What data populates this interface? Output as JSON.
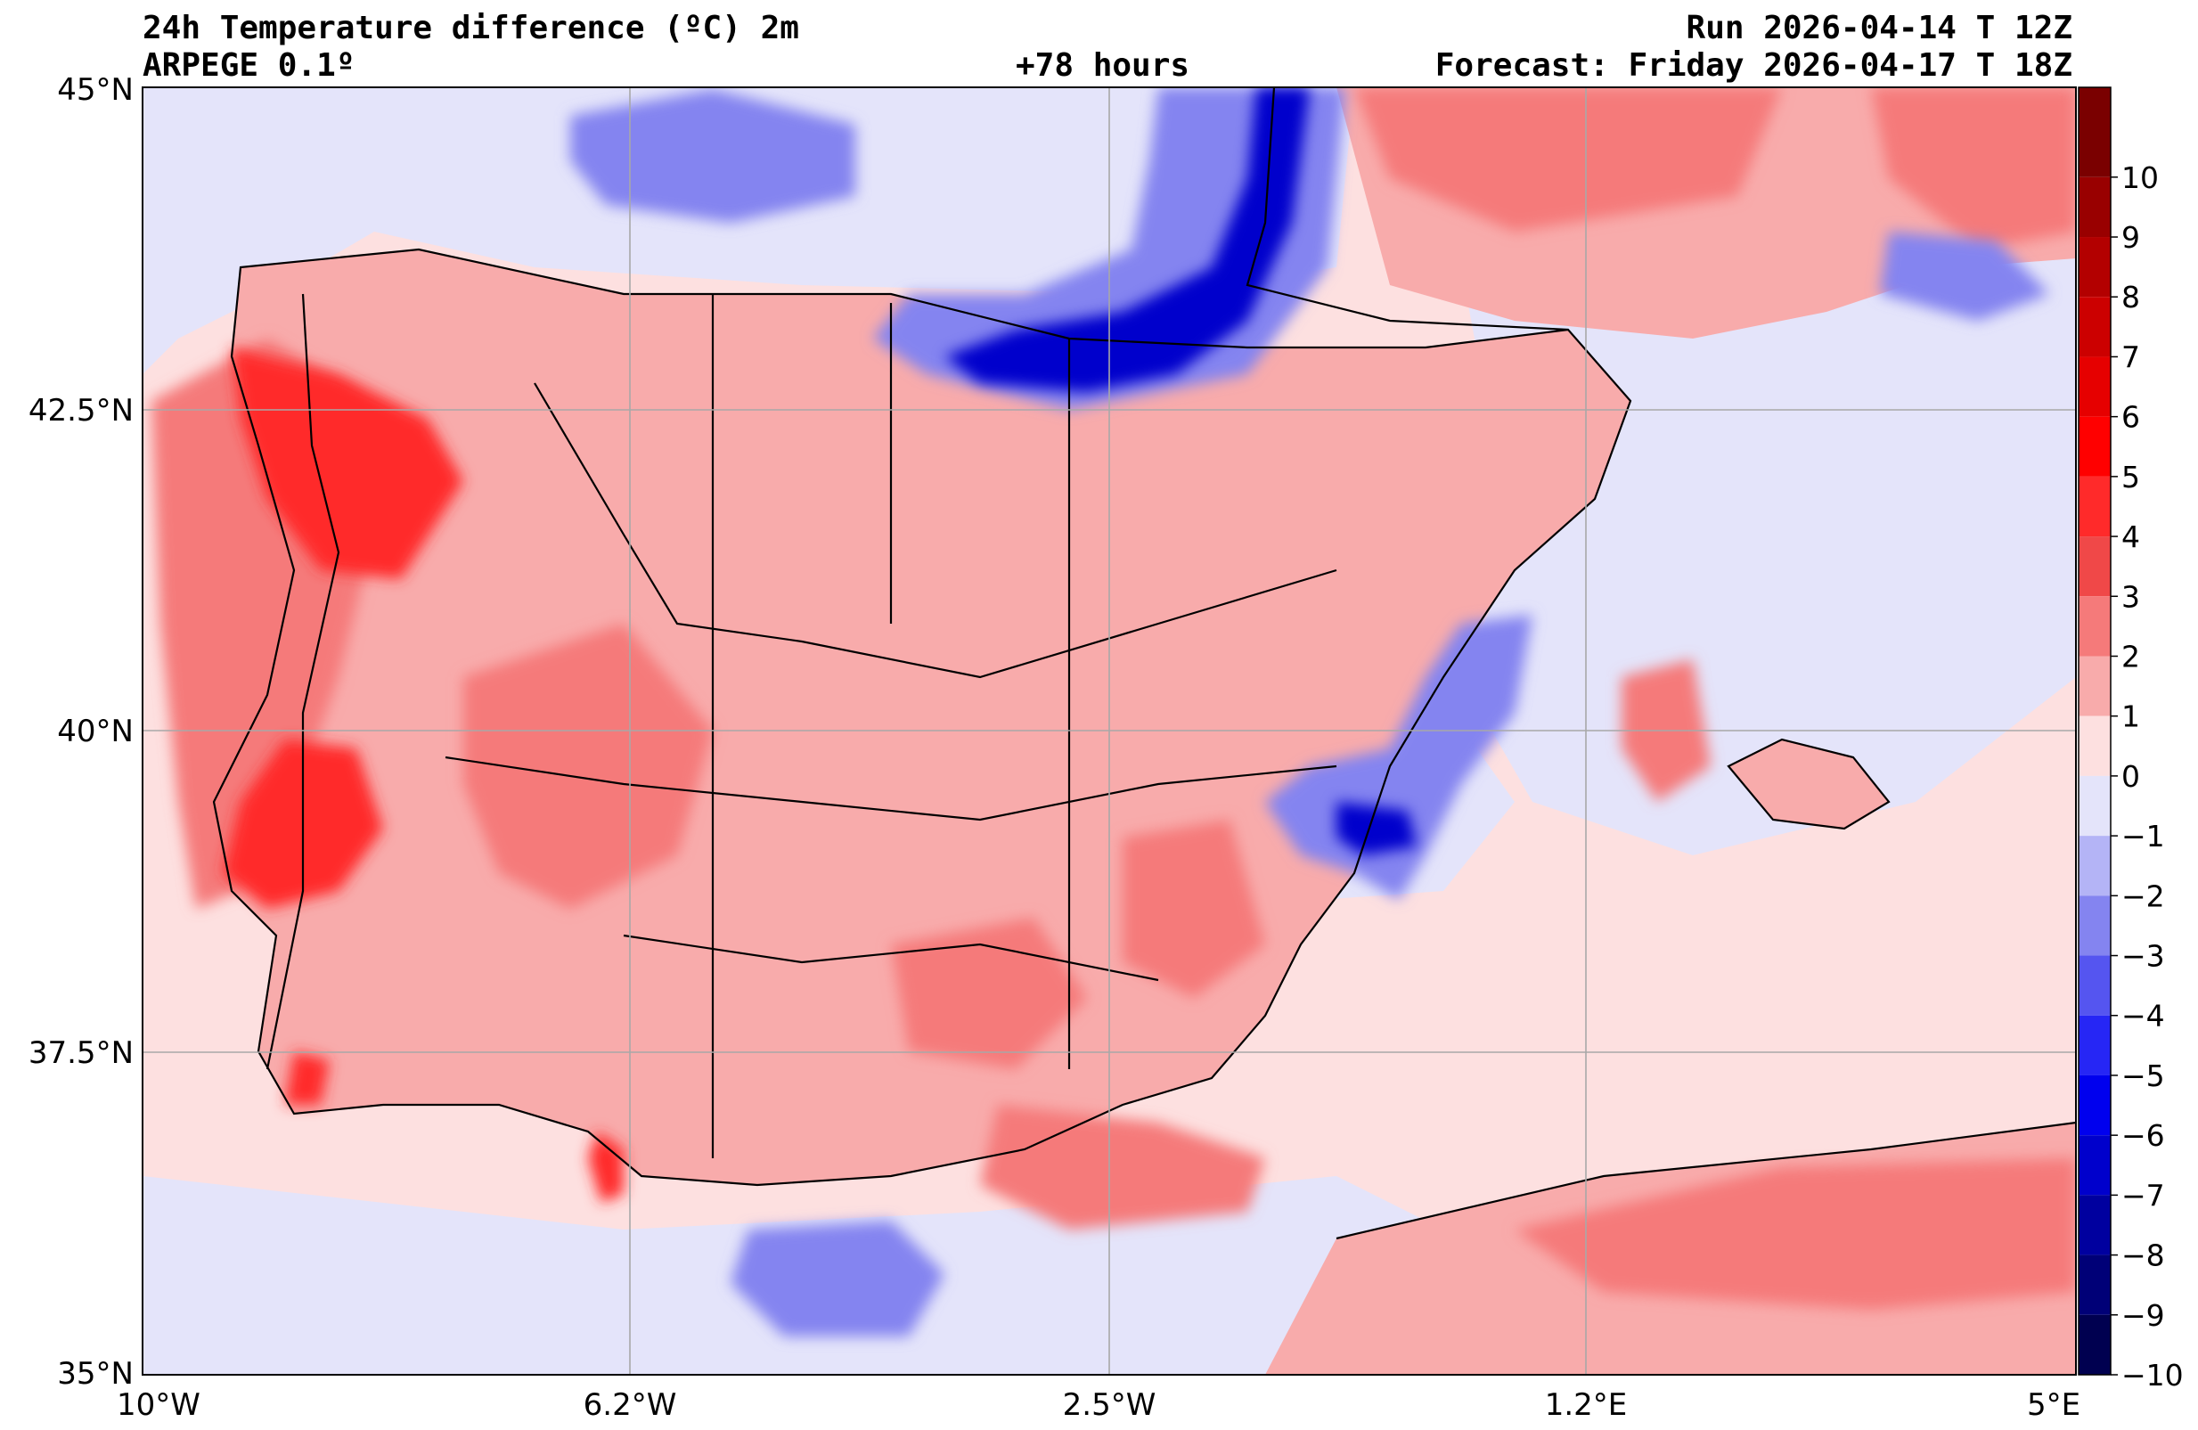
{
  "header": {
    "title": "24h Temperature difference (ºC) 2m",
    "model": "ARPEGE 0.1º",
    "lead_time": "+78 hours",
    "run": "Run 2026-04-14 T 12Z",
    "forecast": "Forecast: Friday 2026-04-17 T 18Z"
  },
  "axes": {
    "lat_labels": [
      "45°N",
      "42.5°N",
      "40°N",
      "37.5°N",
      "35°N"
    ],
    "lon_labels": [
      "10°W",
      "6.2°W",
      "2.5°W",
      "1.2°E",
      "5°E"
    ]
  },
  "colorbar": {
    "levels": [
      "10",
      "9",
      "8",
      "7",
      "6",
      "5",
      "4",
      "3",
      "2",
      "1",
      "0",
      "−1",
      "−2",
      "−3",
      "−4",
      "−5",
      "−6",
      "−7",
      "−8",
      "−9",
      "−10"
    ],
    "colors": [
      "#7a0000",
      "#990000",
      "#b30000",
      "#cc0000",
      "#e60000",
      "#ff0000",
      "#ff2a2a",
      "#f04848",
      "#f57a7a",
      "#f8abab",
      "#fde0e0",
      "#e4e4fa",
      "#b4b4f6",
      "#8484f0",
      "#5555f0",
      "#2626f5",
      "#0000ee",
      "#0000cc",
      "#00009f",
      "#000077",
      "#000050"
    ]
  },
  "colors": {
    "sea_base": "#fde0e0",
    "land_base": "#f8abab",
    "cold_light": "#e4e4fa",
    "cold_mid": "#8484f0",
    "cold_dark": "#0000cc",
    "warm_mid": "#f57a7a",
    "warm_strong": "#ff2a2a"
  }
}
